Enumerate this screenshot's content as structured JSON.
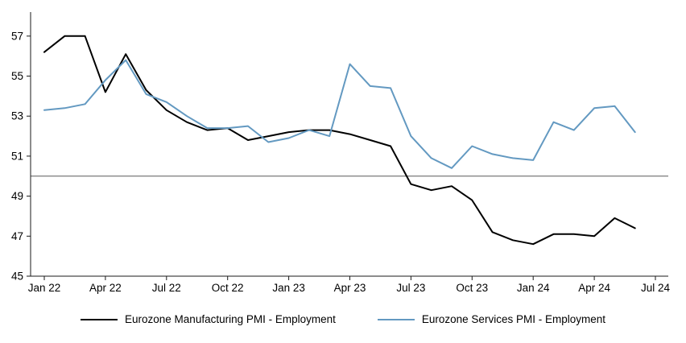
{
  "chart_data": {
    "type": "line",
    "title": "",
    "xlabel": "",
    "ylabel": "",
    "grid": false,
    "legend_position": "bottom",
    "ylim": [
      45,
      58.2
    ],
    "y_ticks": [
      45,
      47,
      49,
      51,
      53,
      55,
      57
    ],
    "reference_line_y": 50,
    "x": [
      "Jan 22",
      "Feb 22",
      "Mar 22",
      "Apr 22",
      "May 22",
      "Jun 22",
      "Jul 22",
      "Aug 22",
      "Sep 22",
      "Oct 22",
      "Nov 22",
      "Dec 22",
      "Jan 23",
      "Feb 23",
      "Mar 23",
      "Apr 23",
      "May 23",
      "Jun 23",
      "Jul 23",
      "Aug 23",
      "Sep 23",
      "Oct 23",
      "Nov 23",
      "Dec 23",
      "Jan 24",
      "Feb 24",
      "Mar 24",
      "Apr 24",
      "May 24",
      "Jun 24"
    ],
    "x_tick_labels": [
      "Jan 22",
      "Apr 22",
      "Jul 22",
      "Oct 22",
      "Jan 23",
      "Apr 23",
      "Jul 23",
      "Oct 23",
      "Jan 24",
      "Apr 24",
      "Jul 24"
    ],
    "x_tick_month_indices": [
      0,
      3,
      6,
      9,
      12,
      15,
      18,
      21,
      24,
      27,
      30
    ],
    "series": [
      {
        "name": "Eurozone Manufacturing PMI - Employment",
        "color": "#000000",
        "values": [
          56.2,
          57.0,
          57.0,
          54.2,
          56.1,
          54.3,
          53.3,
          52.7,
          52.3,
          52.4,
          51.8,
          52.0,
          52.2,
          52.3,
          52.3,
          52.1,
          51.8,
          51.5,
          49.6,
          49.3,
          49.5,
          48.8,
          47.2,
          46.8,
          46.6,
          47.1,
          47.1,
          47.0,
          47.9,
          47.4
        ]
      },
      {
        "name": "Eurozone Services PMI - Employment",
        "color": "#6399C1",
        "values": [
          53.3,
          53.4,
          53.6,
          54.8,
          55.8,
          54.1,
          53.7,
          53.0,
          52.4,
          52.4,
          52.5,
          51.7,
          51.9,
          52.3,
          52.0,
          55.6,
          54.5,
          54.4,
          52.0,
          50.9,
          50.4,
          51.5,
          51.1,
          50.9,
          50.8,
          52.7,
          52.3,
          53.4,
          53.5,
          52.2
        ]
      }
    ]
  },
  "colors": {
    "background": "#ffffff",
    "axis": "#1a1a1a",
    "reference_line": "#595959",
    "text": "#000000"
  }
}
